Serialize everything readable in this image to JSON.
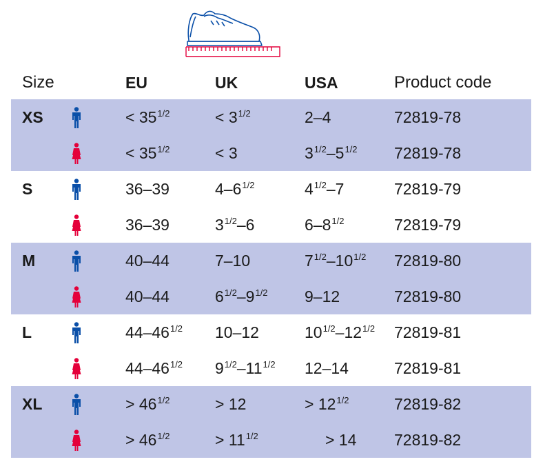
{
  "header": {
    "size": "Size",
    "eu": "EU",
    "uk": "UK",
    "usa": "USA",
    "code": "Product code"
  },
  "colors": {
    "shade": "#bfc5e6",
    "male": "#0a4fa8",
    "female": "#e4003a"
  },
  "icons": {
    "male": "male-figure-icon",
    "female": "female-figure-icon",
    "shoe": "shoe-measure-icon"
  },
  "rows": [
    {
      "size": "XS",
      "gender": "male",
      "shaded": true,
      "eu": "< 35|1/2",
      "uk": "< 3|1/2",
      "usa": "2–4",
      "code": "72819-78"
    },
    {
      "size": "",
      "gender": "female",
      "shaded": true,
      "eu": "< 35|1/2",
      "uk": "< 3",
      "usa": "3|1/2|–5|1/2",
      "code": "72819-78"
    },
    {
      "size": "S",
      "gender": "male",
      "shaded": false,
      "eu": "36–39",
      "uk": "4–6|1/2",
      "usa": "4|1/2|–7",
      "code": "72819-79"
    },
    {
      "size": "",
      "gender": "female",
      "shaded": false,
      "eu": "36–39",
      "uk": "3|1/2|–6",
      "usa": "6–8|1/2",
      "code": "72819-79"
    },
    {
      "size": "M",
      "gender": "male",
      "shaded": true,
      "eu": "40–44",
      "uk": "7–10",
      "usa": "7|1/2|–10|1/2",
      "code": "72819-80"
    },
    {
      "size": "",
      "gender": "female",
      "shaded": true,
      "eu": "40–44",
      "uk": "6|1/2|–9|1/2",
      "usa": "9–12",
      "code": "72819-80"
    },
    {
      "size": "L",
      "gender": "male",
      "shaded": false,
      "eu": "44–46|1/2",
      "uk": "10–12",
      "usa": "10|1/2|–12|1/2",
      "code": "72819-81"
    },
    {
      "size": "",
      "gender": "female",
      "shaded": false,
      "eu": "44–46|1/2",
      "uk": "9|1/2|–11|1/2",
      "usa": "12–14",
      "code": "72819-81"
    },
    {
      "size": "XL",
      "gender": "male",
      "shaded": true,
      "eu": "> 46|1/2",
      "uk": "> 12",
      "usa": "> 12|1/2",
      "code": "72819-82"
    },
    {
      "size": "",
      "gender": "female",
      "shaded": true,
      "eu": "> 46|1/2",
      "uk": "> 11|1/2",
      "usa": "   > 14",
      "code": "72819-82"
    }
  ]
}
